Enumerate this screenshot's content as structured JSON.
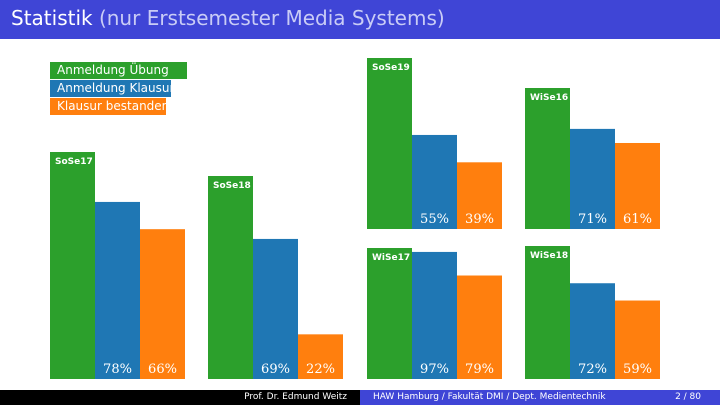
{
  "slide": {
    "title_main": "Statistik",
    "title_sub": "(nur Erstsemester Media Systems)"
  },
  "colors": {
    "title_bar": "#3f45d6",
    "green": "#2ca02c",
    "blue": "#1f77b4",
    "orange": "#ff7f0e"
  },
  "legend": {
    "entries": [
      "Anmeldung Übung",
      "Anmeldung Klausur",
      "Klausur bestanden"
    ]
  },
  "chart_data": [
    {
      "type": "bar",
      "title": "SoSe17",
      "series": [
        {
          "name": "Anmeldung Übung",
          "value": 100
        },
        {
          "name": "Anmeldung Klausur",
          "value": 78,
          "label": "78%"
        },
        {
          "name": "Klausur bestanden",
          "value": 66,
          "label": "66%"
        }
      ]
    },
    {
      "type": "bar",
      "title": "SoSe18",
      "series": [
        {
          "name": "Anmeldung Übung",
          "value": 100
        },
        {
          "name": "Anmeldung Klausur",
          "value": 69,
          "label": "69%"
        },
        {
          "name": "Klausur bestanden",
          "value": 22,
          "label": "22%"
        }
      ]
    },
    {
      "type": "bar",
      "title": "SoSe19",
      "series": [
        {
          "name": "Anmeldung Übung",
          "value": 100
        },
        {
          "name": "Anmeldung Klausur",
          "value": 55,
          "label": "55%"
        },
        {
          "name": "Klausur bestanden",
          "value": 39,
          "label": "39%"
        }
      ]
    },
    {
      "type": "bar",
      "title": "WiSe16",
      "series": [
        {
          "name": "Anmeldung Übung",
          "value": 100
        },
        {
          "name": "Anmeldung Klausur",
          "value": 71,
          "label": "71%"
        },
        {
          "name": "Klausur bestanden",
          "value": 61,
          "label": "61%"
        }
      ]
    },
    {
      "type": "bar",
      "title": "WiSe17",
      "series": [
        {
          "name": "Anmeldung Übung",
          "value": 100
        },
        {
          "name": "Anmeldung Klausur",
          "value": 97,
          "label": "97%"
        },
        {
          "name": "Klausur bestanden",
          "value": 79,
          "label": "79%"
        }
      ]
    },
    {
      "type": "bar",
      "title": "WiSe18",
      "series": [
        {
          "name": "Anmeldung Übung",
          "value": 100
        },
        {
          "name": "Anmeldung Klausur",
          "value": 72,
          "label": "72%"
        },
        {
          "name": "Klausur bestanden",
          "value": 59,
          "label": "59%"
        }
      ]
    }
  ],
  "footer": {
    "author": "Prof. Dr. Edmund Weitz",
    "institution": "HAW Hamburg / Fakultät DMI / Dept. Medientechnik",
    "page": "2 / 80"
  }
}
